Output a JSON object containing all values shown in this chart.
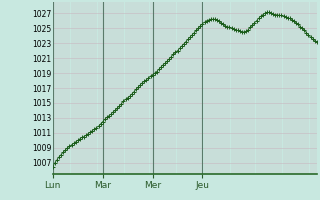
{
  "background_color": "#c8e8e0",
  "grid_color_h": "#c8b8c0",
  "grid_color_v": "#c8b8c0",
  "line_color": "#1a5c1a",
  "marker": "+",
  "marker_size": 2.5,
  "marker_edge_width": 0.7,
  "line_width": 0.5,
  "ylim": [
    1005.5,
    1028.5
  ],
  "yticks": [
    1007,
    1009,
    1011,
    1013,
    1015,
    1017,
    1019,
    1021,
    1023,
    1025,
    1027
  ],
  "xtick_labels": [
    "Lun",
    "Mar",
    "Mer",
    "Jeu"
  ],
  "day_positions": [
    0,
    24,
    48,
    72
  ],
  "bottom_border_color": "#2a6a2a",
  "vline_color": "#5a7a6a",
  "pressure_values": [
    1006.5,
    1007.0,
    1007.4,
    1007.8,
    1008.1,
    1008.4,
    1008.7,
    1009.0,
    1009.2,
    1009.4,
    1009.6,
    1009.8,
    1010.0,
    1010.2,
    1010.4,
    1010.5,
    1010.7,
    1010.9,
    1011.1,
    1011.3,
    1011.5,
    1011.7,
    1011.9,
    1012.2,
    1012.5,
    1012.8,
    1013.1,
    1013.3,
    1013.5,
    1013.8,
    1014.0,
    1014.3,
    1014.6,
    1014.9,
    1015.2,
    1015.5,
    1015.7,
    1015.9,
    1016.2,
    1016.5,
    1016.8,
    1017.1,
    1017.4,
    1017.7,
    1017.9,
    1018.1,
    1018.3,
    1018.6,
    1018.8,
    1019.0,
    1019.2,
    1019.5,
    1019.8,
    1020.1,
    1020.3,
    1020.6,
    1020.9,
    1021.2,
    1021.5,
    1021.8,
    1022.0,
    1022.3,
    1022.6,
    1022.9,
    1023.2,
    1023.5,
    1023.8,
    1024.1,
    1024.4,
    1024.7,
    1025.0,
    1025.3,
    1025.6,
    1025.8,
    1026.0,
    1026.1,
    1026.2,
    1026.2,
    1026.2,
    1026.1,
    1025.9,
    1025.7,
    1025.5,
    1025.3,
    1025.2,
    1025.1,
    1025.0,
    1024.9,
    1024.8,
    1024.7,
    1024.6,
    1024.5,
    1024.5,
    1024.6,
    1024.8,
    1025.1,
    1025.4,
    1025.7,
    1026.0,
    1026.3,
    1026.6,
    1026.8,
    1027.0,
    1027.1,
    1027.1,
    1027.0,
    1026.9,
    1026.8,
    1026.8,
    1026.7,
    1026.7,
    1026.6,
    1026.5,
    1026.4,
    1026.3,
    1026.1,
    1025.9,
    1025.7,
    1025.5,
    1025.2,
    1025.0,
    1024.7,
    1024.4,
    1024.1,
    1023.8,
    1023.5,
    1023.3,
    1023.2
  ]
}
